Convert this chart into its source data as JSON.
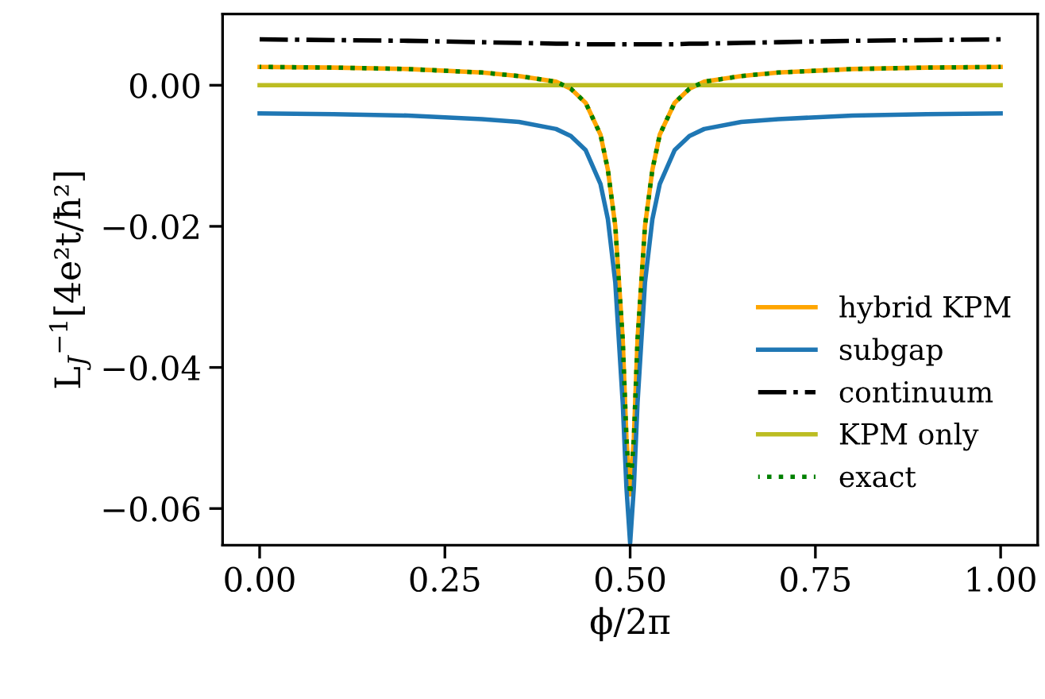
{
  "chart_data": {
    "type": "line",
    "xlabel": "ϕ/2π",
    "ylabel": "L$_{J}$$^{−1}$[4e²t/ħ²]",
    "xlim": [
      -0.05,
      1.05
    ],
    "ylim": [
      -0.0652,
      0.0101
    ],
    "xticks": [
      {
        "value": 0,
        "label": "0.00"
      },
      {
        "value": 0.25,
        "label": "0.25"
      },
      {
        "value": 0.5,
        "label": "0.50"
      },
      {
        "value": 0.75,
        "label": "0.75"
      },
      {
        "value": 1,
        "label": "1.00"
      }
    ],
    "yticks": [
      {
        "value": 0,
        "label": "0.00"
      },
      {
        "value": -0.02,
        "label": "−0.02"
      },
      {
        "value": -0.04,
        "label": "−0.04"
      },
      {
        "value": -0.06,
        "label": "−0.06"
      }
    ],
    "x": [
      0,
      0.1,
      0.2,
      0.3,
      0.35,
      0.4,
      0.42,
      0.44,
      0.46,
      0.47,
      0.48,
      0.49,
      0.495,
      0.5,
      0.505,
      0.51,
      0.52,
      0.53,
      0.54,
      0.56,
      0.58,
      0.6,
      0.65,
      0.7,
      0.8,
      0.9,
      1
    ],
    "grid": false,
    "legend": "lower right",
    "marker": "none",
    "series": [
      {
        "name": "hybrid KPM",
        "color": "#ffa500",
        "line_style": "solid",
        "values": [
          0.0026,
          0.0025,
          0.0023,
          0.0018,
          0.0013,
          0.0005,
          -0.0005,
          -0.0025,
          -0.007,
          -0.012,
          -0.02,
          -0.036,
          -0.05,
          -0.058,
          -0.05,
          -0.036,
          -0.02,
          -0.012,
          -0.007,
          -0.0025,
          -0.0005,
          0.0005,
          0.0013,
          0.0018,
          0.0023,
          0.0025,
          0.0026
        ]
      },
      {
        "name": "subgap",
        "color": "#1f77b4",
        "line_style": "solid",
        "values": [
          -0.004,
          -0.0041,
          -0.0043,
          -0.0048,
          -0.0052,
          -0.0062,
          -0.0072,
          -0.0092,
          -0.014,
          -0.019,
          -0.028,
          -0.045,
          -0.057,
          -0.0649,
          -0.057,
          -0.045,
          -0.028,
          -0.019,
          -0.014,
          -0.0092,
          -0.0072,
          -0.0062,
          -0.0052,
          -0.0048,
          -0.0043,
          -0.0041,
          -0.004
        ]
      },
      {
        "name": "continuum",
        "color": "#000000",
        "line_style": "dashdot",
        "values": [
          0.0065,
          0.0064,
          0.0063,
          0.0061,
          0.006,
          0.0059,
          0.0059,
          0.0058,
          0.0058,
          0.0058,
          0.0058,
          0.0058,
          0.0058,
          0.0058,
          0.0058,
          0.0058,
          0.0058,
          0.0058,
          0.0058,
          0.0058,
          0.0059,
          0.0059,
          0.006,
          0.0061,
          0.0063,
          0.0064,
          0.0065
        ]
      },
      {
        "name": "KPM only",
        "color": "#bcbd22",
        "line_style": "solid",
        "values": [
          0,
          0,
          0,
          0,
          0,
          0,
          0,
          0,
          0,
          0,
          0,
          0,
          0,
          0,
          0,
          0,
          0,
          0,
          0,
          0,
          0,
          0,
          0,
          0,
          0,
          0,
          0
        ]
      },
      {
        "name": "exact",
        "color": "#008000",
        "line_style": "dotted",
        "values": [
          0.0026,
          0.0025,
          0.0023,
          0.0018,
          0.0013,
          0.0005,
          -0.0005,
          -0.0025,
          -0.007,
          -0.012,
          -0.02,
          -0.036,
          -0.05,
          -0.058,
          -0.05,
          -0.036,
          -0.02,
          -0.012,
          -0.007,
          -0.0025,
          -0.0005,
          0.0005,
          0.0013,
          0.0018,
          0.0023,
          0.0025,
          0.0026
        ]
      }
    ]
  }
}
